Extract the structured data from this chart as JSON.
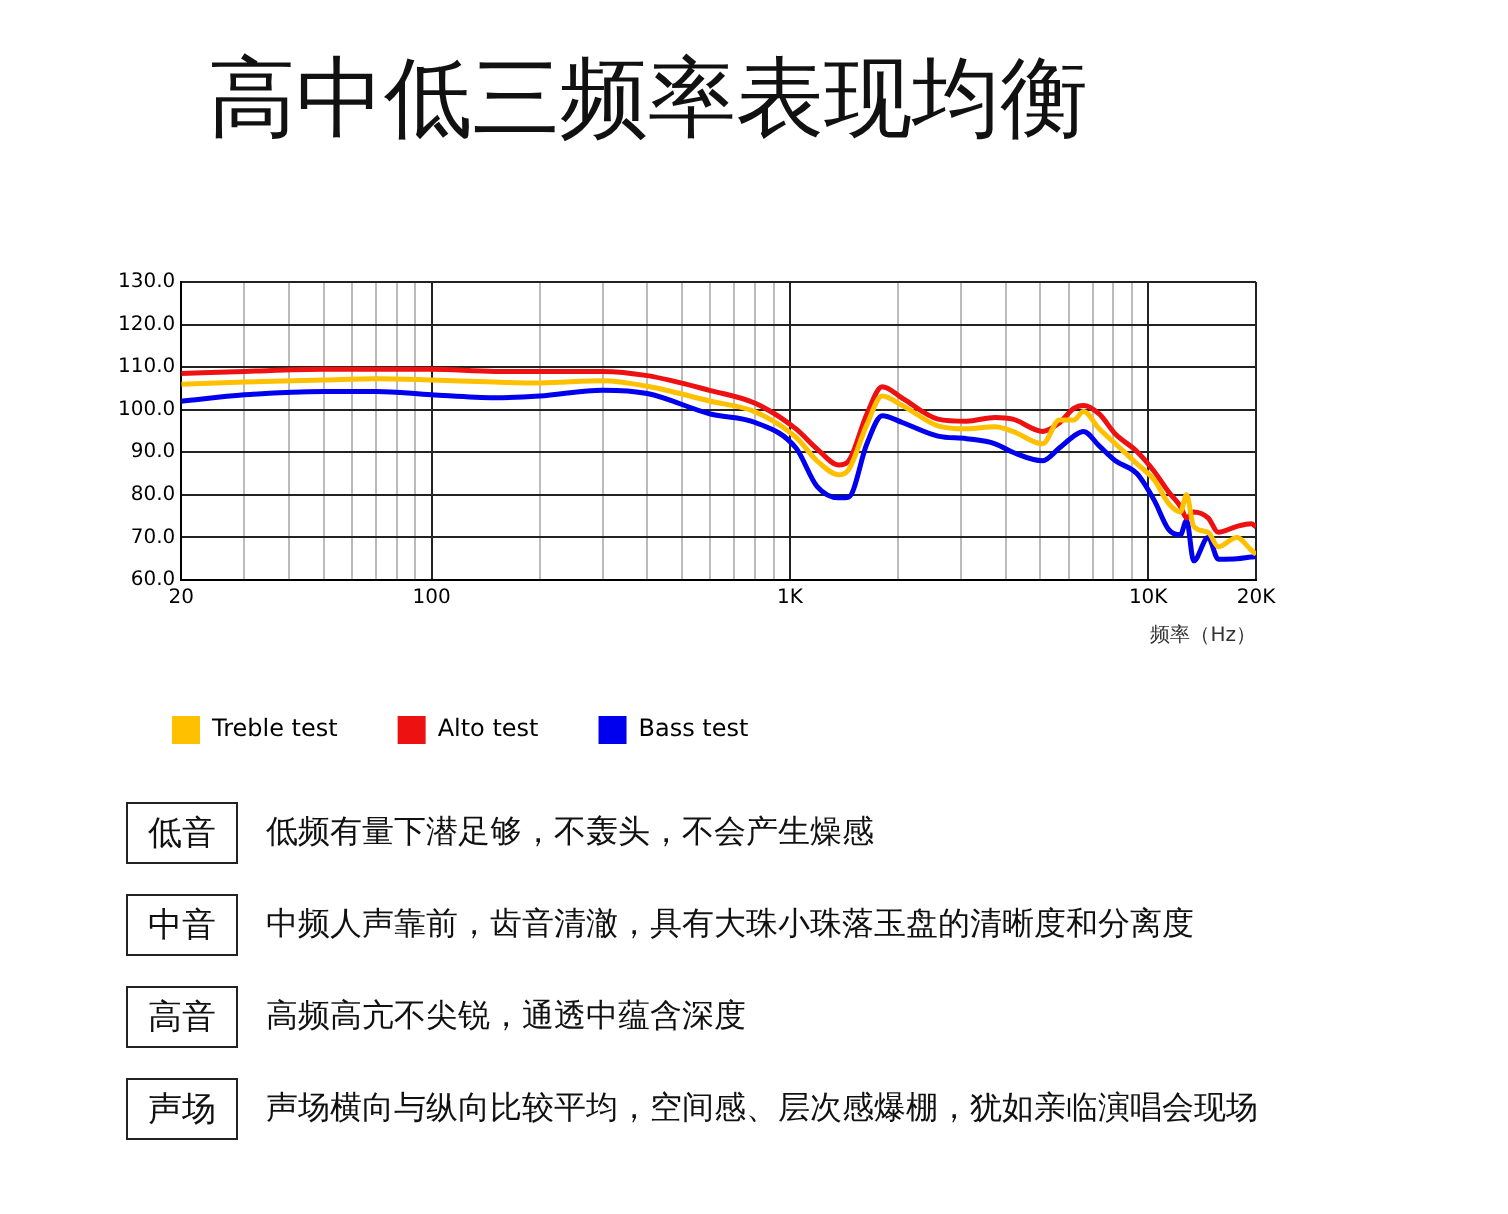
{
  "chart_data": {
    "type": "line",
    "title": "高中低三频率表现均衡",
    "xlabel": "频率（Hz）",
    "log": "x",
    "x": [
      20,
      30,
      50,
      70,
      100,
      150,
      200,
      300,
      400,
      600,
      800,
      1040,
      1190,
      1370,
      1460,
      1640,
      1810,
      2060,
      2590,
      3110,
      3740,
      4190,
      5080,
      5650,
      6200,
      6600,
      7300,
      8100,
      9300,
      10400,
      11400,
      12300,
      12800,
      13400,
      14700,
      15700,
      17700,
      19400,
      20000
    ],
    "series": [
      {
        "name": "Treble test",
        "color": "#ffc000",
        "values": [
          106,
          106.5,
          107,
          107.3,
          107,
          106.5,
          106.3,
          106.8,
          105.5,
          102,
          99.5,
          93.5,
          88,
          84.7,
          86,
          96.5,
          103.2,
          101,
          96.2,
          95.5,
          96,
          94.9,
          92,
          97.6,
          97.6,
          99.6,
          95.5,
          92,
          87.3,
          83.5,
          78,
          76,
          80,
          72.6,
          71.2,
          67.8,
          70,
          67,
          66
        ]
      },
      {
        "name": "Alto test",
        "color": "#ee1111",
        "values": [
          108.5,
          109,
          109.5,
          109.5,
          109.5,
          109,
          109,
          109,
          108,
          104.5,
          101.5,
          95.5,
          90.8,
          87,
          88,
          99,
          105.4,
          102.7,
          97.8,
          97.3,
          98.2,
          97.8,
          94.9,
          96.9,
          100.3,
          101,
          99,
          94.3,
          90.2,
          85.5,
          80.7,
          77.3,
          74.6,
          76,
          74.6,
          71.2,
          72.6,
          73.2,
          72.5
        ]
      },
      {
        "name": "Bass test",
        "color": "#0000ee",
        "values": [
          102,
          103.5,
          104.3,
          104.3,
          103.5,
          102.8,
          103.2,
          104.6,
          103.8,
          99,
          97,
          91,
          82,
          79.3,
          79.5,
          92,
          98.6,
          97,
          93.8,
          93.2,
          92,
          90,
          88,
          91,
          93.8,
          94.9,
          91.5,
          88,
          85,
          78.7,
          71.9,
          70.6,
          74,
          64.5,
          70,
          64.9,
          65,
          65.4,
          65.5
        ]
      }
    ],
    "xlim": [
      20,
      20000
    ],
    "xticks": [
      {
        "value": 20,
        "label": "20"
      },
      {
        "value": 30,
        "label": null
      },
      {
        "value": 40,
        "label": null
      },
      {
        "value": 50,
        "label": null
      },
      {
        "value": 60,
        "label": null
      },
      {
        "value": 70,
        "label": null
      },
      {
        "value": 80,
        "label": null
      },
      {
        "value": 90,
        "label": null
      },
      {
        "value": 100,
        "label": "100"
      },
      {
        "value": 200,
        "label": null
      },
      {
        "value": 300,
        "label": null
      },
      {
        "value": 400,
        "label": null
      },
      {
        "value": 500,
        "label": null
      },
      {
        "value": 600,
        "label": null
      },
      {
        "value": 700,
        "label": null
      },
      {
        "value": 800,
        "label": null
      },
      {
        "value": 900,
        "label": null
      },
      {
        "value": 1000,
        "label": "1K"
      },
      {
        "value": 2000,
        "label": null
      },
      {
        "value": 3000,
        "label": null
      },
      {
        "value": 4000,
        "label": null
      },
      {
        "value": 5000,
        "label": null
      },
      {
        "value": 6000,
        "label": null
      },
      {
        "value": 7000,
        "label": null
      },
      {
        "value": 8000,
        "label": null
      },
      {
        "value": 9000,
        "label": null
      },
      {
        "value": 10000,
        "label": "10K"
      },
      {
        "value": 20000,
        "label": "20K"
      }
    ],
    "ylim": [
      60,
      130
    ],
    "yticks": [
      {
        "value": 60,
        "label": "60.0"
      },
      {
        "value": 70,
        "label": "70.0"
      },
      {
        "value": 80,
        "label": "80.0"
      },
      {
        "value": 90,
        "label": "90.0"
      },
      {
        "value": 100,
        "label": "100.0"
      },
      {
        "value": 110,
        "label": "110.0"
      },
      {
        "value": 120,
        "label": "120.0"
      },
      {
        "value": 130,
        "label": "130.0"
      }
    ],
    "grid": true,
    "legend": "bottom",
    "marker": "none",
    "line_style": "solid",
    "annotations": [
      "低音",
      "低频有量下潜足够，不轰头，不会产生燥感",
      "中音",
      "中频人声靠前，齿音清澈，具有大珠小珠落玉盘的清晰度和分离度",
      "高音",
      "高频高亢不尖锐，通透中蕴含深度",
      "声场",
      "声场横向与纵向比较平均，空间感、层次感爆棚，犹如亲临演唱会现场"
    ]
  }
}
